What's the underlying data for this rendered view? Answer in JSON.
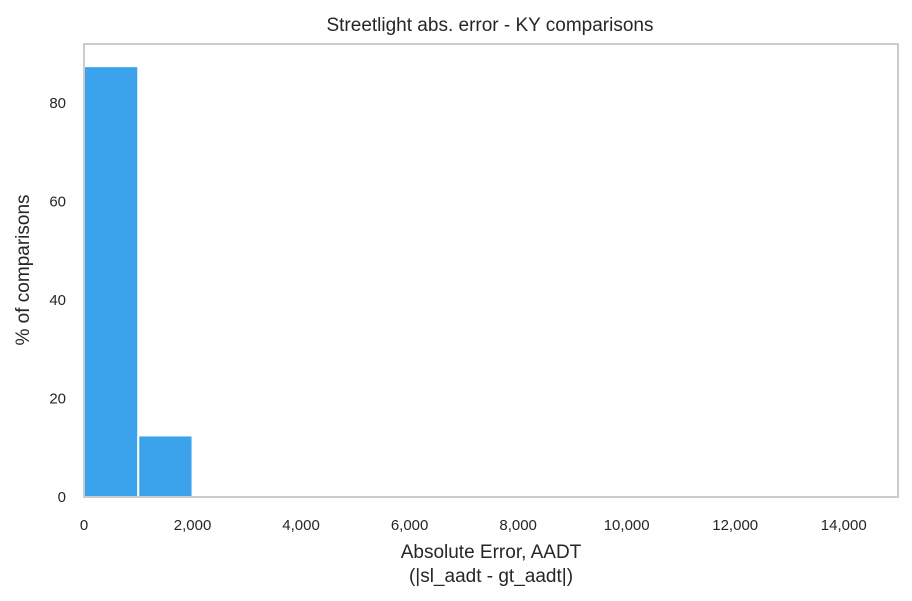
{
  "chart_data": {
    "type": "bar",
    "title": "Streetlight abs. error - KY comparisons",
    "xlabel": "Absolute Error, AADT",
    "xlabel_line2": "(|sl_aadt - gt_aadt|)",
    "ylabel": "% of comparisons",
    "xlim": [
      0,
      15000
    ],
    "ylim": [
      0,
      92
    ],
    "x_ticks": [
      {
        "value": 0,
        "label": "0"
      },
      {
        "value": 2000,
        "label": "2,000"
      },
      {
        "value": 4000,
        "label": "4,000"
      },
      {
        "value": 6000,
        "label": "6,000"
      },
      {
        "value": 8000,
        "label": "8,000"
      },
      {
        "value": 10000,
        "label": "10,000"
      },
      {
        "value": 12000,
        "label": "12,000"
      },
      {
        "value": 14000,
        "label": "14,000"
      }
    ],
    "y_ticks": [
      {
        "value": 0,
        "label": "0"
      },
      {
        "value": 20,
        "label": "20"
      },
      {
        "value": 40,
        "label": "40"
      },
      {
        "value": 60,
        "label": "60"
      },
      {
        "value": 80,
        "label": "80"
      }
    ],
    "bins": [
      {
        "x0": 0,
        "x1": 1000,
        "value": 87.5
      },
      {
        "x0": 1000,
        "x1": 2000,
        "value": 12.5
      }
    ],
    "grid": false,
    "bar_color": "#3ba3ec",
    "frame_color": "#cccccc",
    "text_color": "#262626"
  }
}
